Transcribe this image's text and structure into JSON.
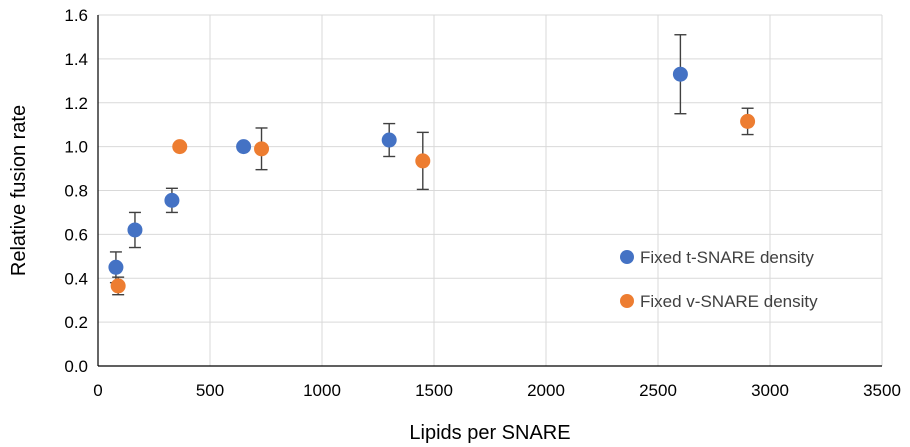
{
  "chart_data": {
    "type": "scatter",
    "title": "",
    "xlabel": "Lipids per SNARE",
    "ylabel": "Relative fusion rate",
    "xlim": [
      0,
      3500
    ],
    "ylim": [
      0,
      1.6
    ],
    "xticks": [
      0,
      500,
      1000,
      1500,
      2000,
      2500,
      3000,
      3500
    ],
    "yticks": [
      0.0,
      0.2,
      0.4,
      0.6,
      0.8,
      1.0,
      1.2,
      1.4,
      1.6
    ],
    "grid": true,
    "legend_position": "bottom-right",
    "series": [
      {
        "name": "Fixed t-SNARE density",
        "color": "#4472C4",
        "points": [
          {
            "x": 80,
            "y": 0.45,
            "err": 0.07
          },
          {
            "x": 165,
            "y": 0.62,
            "err": 0.08
          },
          {
            "x": 330,
            "y": 0.755,
            "err": 0.055
          },
          {
            "x": 650,
            "y": 1.0,
            "err": 0
          },
          {
            "x": 1300,
            "y": 1.03,
            "err": 0.075
          },
          {
            "x": 2600,
            "y": 1.33,
            "err": 0.18
          }
        ]
      },
      {
        "name": "Fixed v-SNARE density",
        "color": "#ED7D31",
        "points": [
          {
            "x": 90,
            "y": 0.365,
            "err": 0.04
          },
          {
            "x": 365,
            "y": 1.0,
            "err": 0
          },
          {
            "x": 730,
            "y": 0.99,
            "err": 0.095
          },
          {
            "x": 1450,
            "y": 0.935,
            "err": 0.13
          },
          {
            "x": 2900,
            "y": 1.115,
            "err": 0.06
          }
        ]
      }
    ]
  }
}
